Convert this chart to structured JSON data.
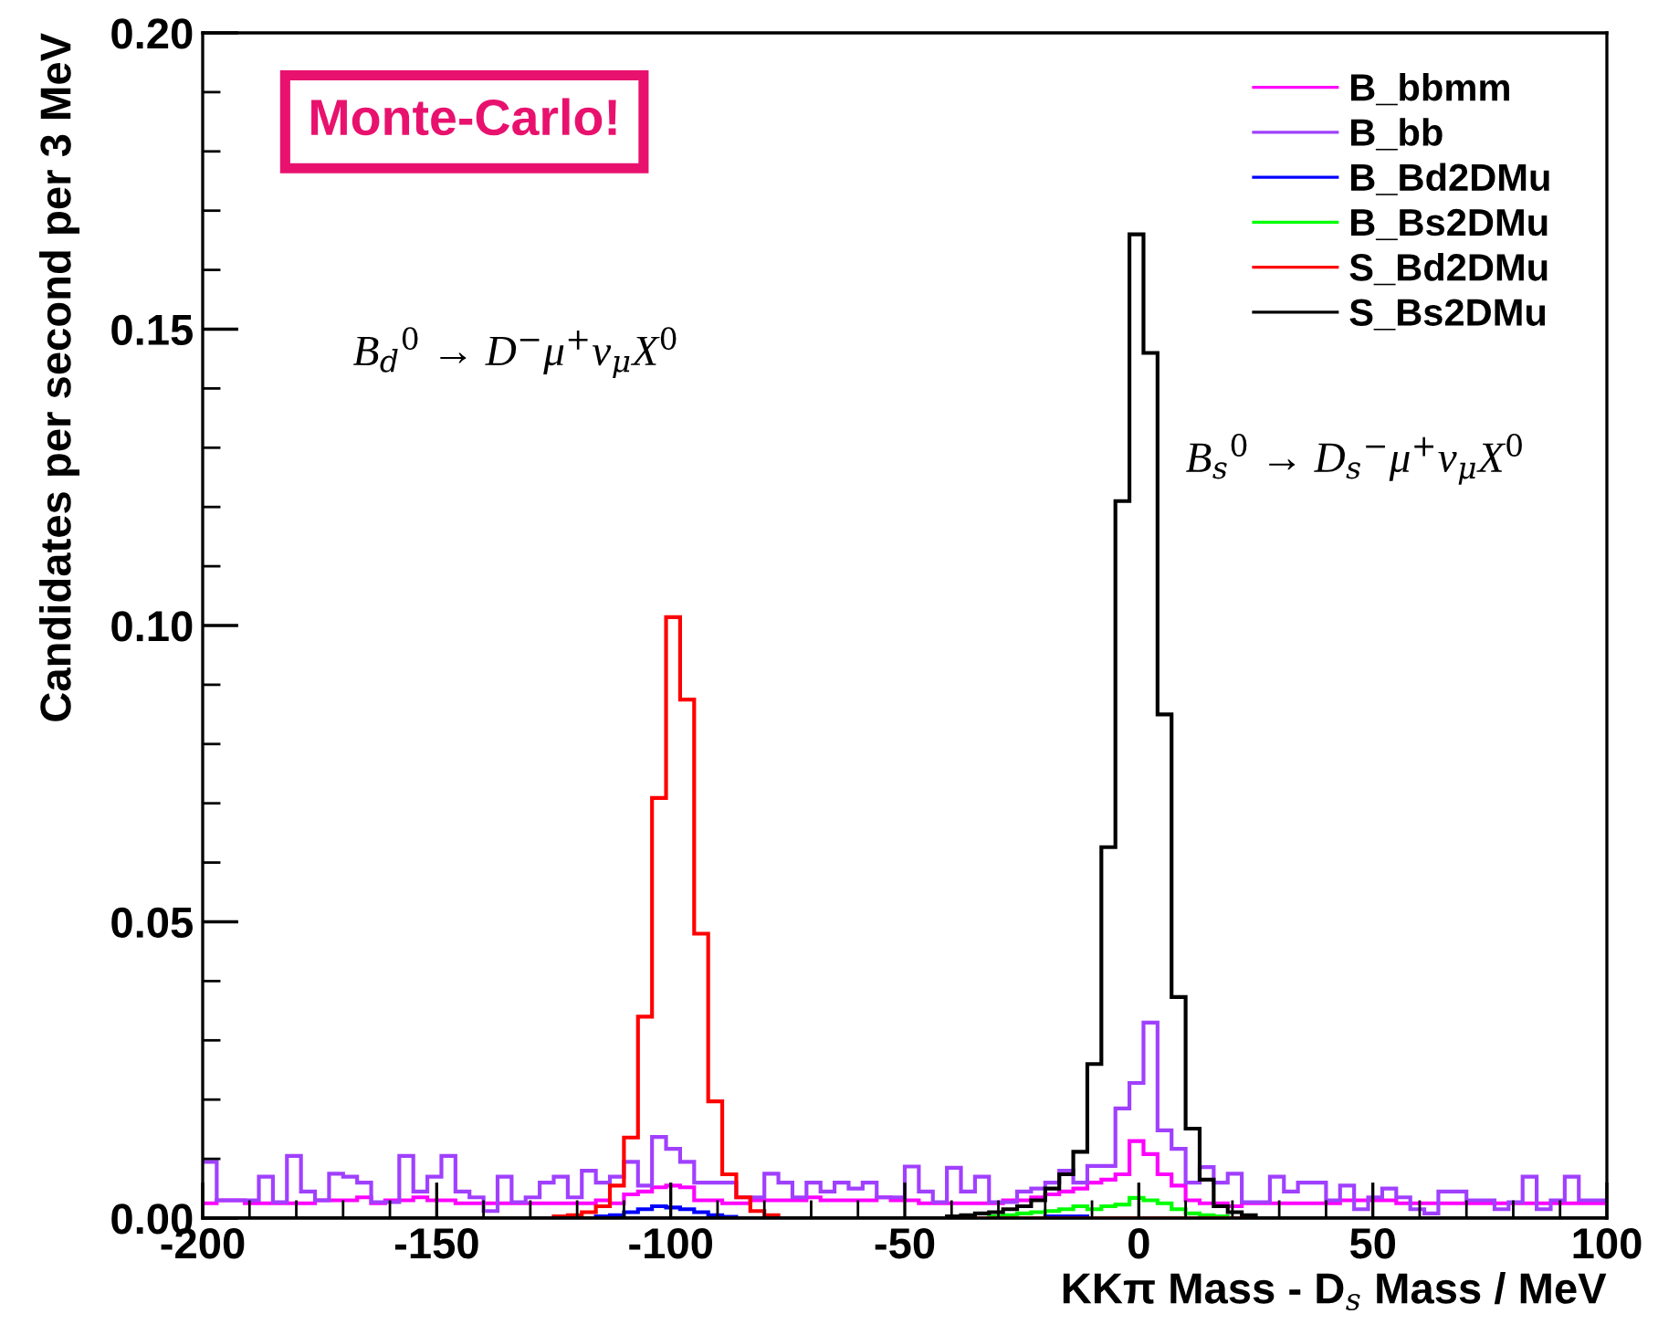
{
  "chart_data": {
    "type": "histogram",
    "xlabel": "KKπ Mass - D$_{s}$ Mass / MeV",
    "ylabel": "Candidates per second per 3 MeV",
    "bins": [
      -200,
      -197,
      -194,
      -191,
      -188,
      -185,
      -182,
      -179,
      -176,
      -173,
      -170,
      -167,
      -164,
      -161,
      -158,
      -155,
      -152,
      -149,
      -146,
      -143,
      -140,
      -137,
      -134,
      -131,
      -128,
      -125,
      -122,
      -119,
      -116,
      -113,
      -110,
      -107,
      -104,
      -101,
      -98,
      -95,
      -92,
      -89,
      -86,
      -83,
      -80,
      -77,
      -74,
      -71,
      -68,
      -65,
      -62,
      -59,
      -56,
      -53,
      -50,
      -47,
      -44,
      -41,
      -38,
      -35,
      -32,
      -29,
      -26,
      -23,
      -20,
      -17,
      -14,
      -11,
      -8,
      -5,
      -2,
      1,
      4,
      7,
      10,
      13,
      16,
      19,
      22,
      25,
      28,
      31,
      34,
      37,
      40,
      43,
      46,
      49,
      52,
      55,
      58,
      61,
      64,
      67,
      70,
      73,
      76,
      79,
      82,
      85,
      88,
      91,
      94,
      97,
      100
    ],
    "series": [
      {
        "name": "B_bbmm",
        "color": "#ff00ff",
        "values": [
          0.0025,
          0.003,
          0.003,
          0.0025,
          0.0025,
          0.0025,
          0.0025,
          0.0025,
          0.003,
          0.003,
          0.003,
          0.0035,
          0.0025,
          0.003,
          0.003,
          0.0035,
          0.003,
          0.003,
          0.0025,
          0.0025,
          0.0025,
          0.0025,
          0.0025,
          0.0025,
          0.0025,
          0.0025,
          0.0025,
          0.0025,
          0.003,
          0.0025,
          0.004,
          0.0045,
          0.0052,
          0.0055,
          0.0052,
          0.003,
          0.003,
          0.0025,
          0.0025,
          0.003,
          0.003,
          0.003,
          0.003,
          0.0035,
          0.003,
          0.003,
          0.003,
          0.003,
          0.0035,
          0.003,
          0.003,
          0.0025,
          0.0025,
          0.0025,
          0.0025,
          0.0025,
          0.0025,
          0.003,
          0.003,
          0.0035,
          0.004,
          0.0045,
          0.005,
          0.006,
          0.0065,
          0.0074,
          0.013,
          0.0108,
          0.0074,
          0.0055,
          0.003,
          0.0025,
          0.0025,
          0.002,
          0.0025,
          0.0025,
          0.0025,
          0.0025,
          0.0025,
          0.0025,
          0.0025,
          0.003,
          0.003,
          0.003,
          0.003,
          0.0025,
          0.0025,
          0.0025,
          0.0025,
          0.0025,
          0.0025,
          0.0025,
          0.0025,
          0.0025,
          0.0025,
          0.0025,
          0.0025,
          0.0025,
          0.0025,
          0.0025
        ]
      },
      {
        "name": "B_bb",
        "color": "#a040ff",
        "values": [
          0.0095,
          0.003,
          0.003,
          0.003,
          0.007,
          0.0027,
          0.0105,
          0.0045,
          0.003,
          0.0075,
          0.007,
          0.006,
          0.0027,
          0.0027,
          0.0105,
          0.0045,
          0.007,
          0.0105,
          0.0045,
          0.0035,
          0.0012,
          0.007,
          0.0027,
          0.0035,
          0.006,
          0.007,
          0.0035,
          0.008,
          0.006,
          0.007,
          0.0095,
          0.0055,
          0.0137,
          0.0117,
          0.0095,
          0.006,
          0.006,
          0.006,
          0.0035,
          0.0035,
          0.0075,
          0.006,
          0.0035,
          0.006,
          0.0045,
          0.006,
          0.005,
          0.006,
          0.0035,
          0.0035,
          0.0087,
          0.0045,
          0.0027,
          0.0085,
          0.0045,
          0.007,
          0.0027,
          0.0027,
          0.0045,
          0.005,
          0.006,
          0.008,
          0.006,
          0.0088,
          0.0088,
          0.0185,
          0.0228,
          0.033,
          0.0148,
          0.0117,
          0.006,
          0.0086,
          0.006,
          0.0075,
          0.0027,
          0.0027,
          0.007,
          0.0045,
          0.006,
          0.006,
          0.003,
          0.0055,
          0.0015,
          0.0035,
          0.005,
          0.0035,
          0.0015,
          0.0008,
          0.0045,
          0.0045,
          0.003,
          0.003,
          0.0015,
          0.0027,
          0.007,
          0.0015,
          0.003,
          0.007,
          0.003,
          0.003
        ]
      },
      {
        "name": "B_Bd2DMu",
        "color": "#0000ff",
        "values": [
          0,
          0,
          0,
          0,
          0,
          0,
          0,
          0,
          0,
          0,
          0,
          0,
          0,
          0,
          0,
          0,
          0,
          0,
          0,
          0,
          0,
          0,
          0,
          0,
          0,
          0,
          0,
          0,
          0.0003,
          0.0005,
          0.001,
          0.0015,
          0.002,
          0.0018,
          0.0015,
          0.001,
          0.0005,
          0.0002,
          0,
          0,
          0,
          0,
          0,
          0,
          0,
          0,
          0,
          0,
          0,
          0,
          0,
          0,
          0,
          0,
          0,
          0,
          0,
          0,
          0,
          0,
          0.0003,
          0.0003,
          0.0003,
          0,
          0,
          0,
          0,
          0,
          0,
          0,
          0,
          0,
          0,
          0,
          0,
          0,
          0,
          0,
          0,
          0,
          0,
          0,
          0,
          0,
          0,
          0,
          0,
          0,
          0,
          0,
          0,
          0,
          0,
          0,
          0,
          0,
          0,
          0,
          0,
          0
        ]
      },
      {
        "name": "B_Bs2DMu",
        "color": "#00ff00",
        "values": [
          0,
          0,
          0,
          0,
          0,
          0,
          0,
          0,
          0,
          0,
          0,
          0,
          0,
          0,
          0,
          0,
          0,
          0,
          0,
          0,
          0,
          0,
          0,
          0,
          0,
          0,
          0,
          0,
          0,
          0,
          0,
          0,
          0,
          0,
          0,
          0,
          0,
          0,
          0,
          0,
          0,
          0,
          0,
          0,
          0,
          0,
          0,
          0,
          0,
          0,
          0,
          0,
          0,
          0,
          0,
          0,
          0.0003,
          0.0005,
          0.0008,
          0.001,
          0.0012,
          0.0015,
          0.002,
          0.0015,
          0.002,
          0.0023,
          0.0034,
          0.003,
          0.0025,
          0.0015,
          0.0008,
          0.0005,
          0.0003,
          0,
          0,
          0,
          0,
          0,
          0,
          0,
          0,
          0,
          0,
          0,
          0,
          0,
          0,
          0,
          0,
          0,
          0,
          0,
          0,
          0,
          0,
          0,
          0,
          0,
          0,
          0
        ]
      },
      {
        "name": "S_Bd2DMu",
        "color": "#ff0000",
        "values": [
          0,
          0,
          0,
          0,
          0,
          0,
          0,
          0,
          0,
          0,
          0,
          0,
          0,
          0,
          0,
          0,
          0,
          0,
          0,
          0,
          0,
          0,
          0,
          0,
          0,
          0.0003,
          0.0005,
          0.001,
          0.002,
          0.0055,
          0.0136,
          0.034,
          0.0709,
          0.1014,
          0.0875,
          0.048,
          0.0197,
          0.0074,
          0.0035,
          0.0012,
          0.0005,
          0,
          0,
          0,
          0,
          0,
          0,
          0,
          0,
          0,
          0,
          0,
          0,
          0,
          0,
          0,
          0,
          0,
          0,
          0,
          0,
          0,
          0,
          0,
          0,
          0,
          0,
          0,
          0,
          0,
          0,
          0,
          0,
          0,
          0,
          0,
          0,
          0,
          0,
          0,
          0,
          0,
          0,
          0,
          0,
          0,
          0,
          0,
          0,
          0,
          0,
          0,
          0,
          0,
          0,
          0,
          0,
          0,
          0,
          0
        ]
      },
      {
        "name": "S_Bs2DMu",
        "color": "#000000",
        "values": [
          0,
          0,
          0,
          0,
          0,
          0,
          0,
          0,
          0,
          0,
          0,
          0,
          0,
          0,
          0,
          0,
          0,
          0,
          0,
          0,
          0,
          0,
          0,
          0,
          0,
          0,
          0,
          0,
          0,
          0,
          0,
          0,
          0,
          0,
          0,
          0,
          0,
          0,
          0,
          0,
          0,
          0,
          0,
          0,
          0,
          0,
          0,
          0,
          0,
          0,
          0,
          0,
          0,
          0.0003,
          0.0005,
          0.0008,
          0.001,
          0.0015,
          0.002,
          0.003,
          0.005,
          0.0074,
          0.0112,
          0.026,
          0.0626,
          0.121,
          0.166,
          0.146,
          0.085,
          0.0373,
          0.0151,
          0.0065,
          0.002,
          0.001,
          0.0005,
          0,
          0,
          0,
          0,
          0,
          0,
          0,
          0,
          0,
          0,
          0,
          0,
          0,
          0,
          0,
          0,
          0,
          0,
          0,
          0,
          0,
          0,
          0,
          0,
          0
        ]
      }
    ],
    "xlim": [
      -200,
      100
    ],
    "xticks": [
      -200,
      -150,
      -100,
      -50,
      0,
      50,
      100
    ],
    "ylim": [
      0,
      0.2
    ],
    "yticks": [
      {
        "value": 0,
        "label": "0.00"
      },
      {
        "value": 0.05,
        "label": "0.05"
      },
      {
        "value": 0.1,
        "label": "0.10"
      },
      {
        "value": 0.15,
        "label": "0.15"
      },
      {
        "value": 0.2,
        "label": "0.20"
      }
    ],
    "legend": "top right",
    "grid": false,
    "annotations": [
      "Monte-Carlo!",
      "B$_{d}$$^{0}$ → D$^{−}$μ$^{+}$ν$_{μ}$X$^{0}$",
      "B$_{s}$$^{0}$ → D$_{s}$$^{−}$μ$^{+}$ν$_{μ}$X$^{0}$"
    ]
  }
}
